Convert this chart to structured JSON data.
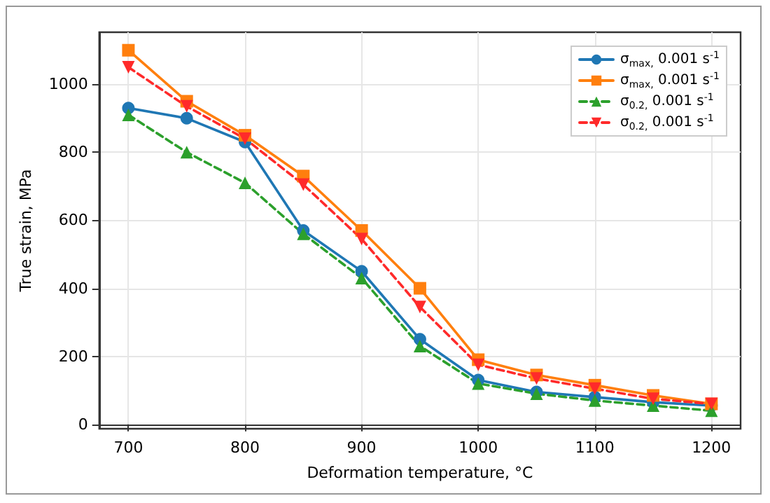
{
  "chart_data": {
    "type": "line",
    "xlabel": "Deformation temperature, °C",
    "ylabel": "True strain, MPa",
    "x": [
      700,
      750,
      800,
      850,
      900,
      950,
      1000,
      1050,
      1100,
      1150,
      1200
    ],
    "series": [
      {
        "name": "σ$_{max,}$ 0.001 s$^{-1}$",
        "color": "#1f77b4",
        "marker": "circle",
        "line_style": "solid",
        "values": [
          930,
          900,
          830,
          570,
          450,
          250,
          130,
          95,
          80,
          65,
          55
        ]
      },
      {
        "name": "σ$_{max,}$ 0.001 s$^{-1}$",
        "color": "#ff7f0e",
        "marker": "square",
        "line_style": "solid",
        "values": [
          1100,
          950,
          850,
          730,
          570,
          400,
          190,
          145,
          115,
          85,
          60
        ]
      },
      {
        "name": "σ$_{0.2,}$ 0.001 s$^{-1}$",
        "color": "#2ca02c",
        "marker": "triangle",
        "line_style": "dashed",
        "values": [
          910,
          800,
          710,
          560,
          430,
          230,
          120,
          90,
          70,
          55,
          40
        ]
      },
      {
        "name": "σ$_{0.2,}$ 0.001 s$^{-1}$",
        "color": "#ff2a2a",
        "marker": "triangle-down",
        "line_style": "dashed",
        "values": [
          1050,
          935,
          840,
          705,
          545,
          345,
          175,
          135,
          105,
          75,
          60
        ]
      }
    ],
    "xlim": [
      675,
      1225
    ],
    "xticks": [
      700,
      800,
      900,
      1000,
      1100,
      1200
    ],
    "ylim": [
      -13,
      1153
    ],
    "yticks": [
      0,
      200,
      400,
      600,
      800,
      1000
    ],
    "grid": true,
    "legend": "top right"
  }
}
